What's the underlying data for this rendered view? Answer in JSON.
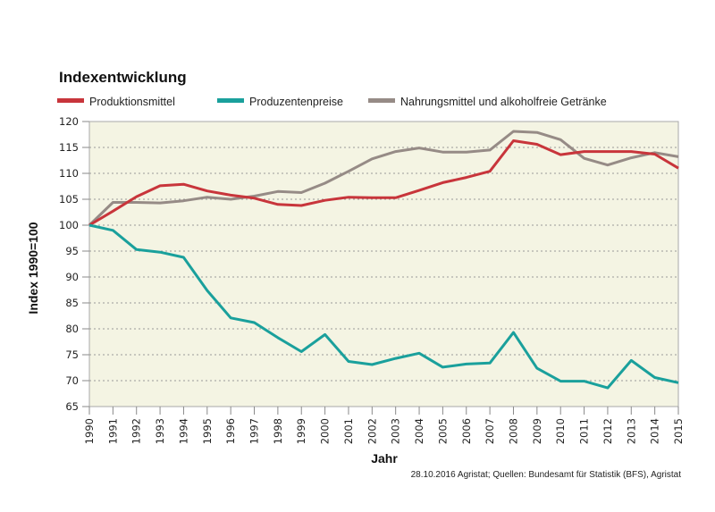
{
  "chart_data": {
    "type": "line",
    "title": "Indexentwicklung",
    "xlabel": "Jahr",
    "ylabel": "Index 1990=100",
    "source": "28.10.2016 Agristat; Quellen: Bundesamt für Statistik (BFS), Agristat",
    "ylim": [
      65,
      120
    ],
    "yticks": [
      65,
      70,
      75,
      80,
      85,
      90,
      95,
      100,
      105,
      110,
      115,
      120
    ],
    "grid": true,
    "legend_position": "top-left",
    "background_color": "#f4f4e3",
    "x": [
      1990,
      1991,
      1992,
      1993,
      1994,
      1995,
      1996,
      1997,
      1998,
      1999,
      2000,
      2001,
      2002,
      2003,
      2004,
      2005,
      2006,
      2007,
      2008,
      2009,
      2010,
      2011,
      2012,
      2013,
      2014,
      2015
    ],
    "series": [
      {
        "name": "Produktionsmittel",
        "color": "#c8353b",
        "values": [
          100,
          102.7,
          105.5,
          107.6,
          107.9,
          106.6,
          105.8,
          105.2,
          104.0,
          103.8,
          104.8,
          105.4,
          105.3,
          105.3,
          106.7,
          108.2,
          109.2,
          110.4,
          116.3,
          115.6,
          113.6,
          114.2,
          114.2,
          114.2,
          113.7,
          111.0
        ]
      },
      {
        "name": "Produzentenpreise",
        "color": "#1aa09c",
        "values": [
          100,
          99.0,
          95.3,
          94.8,
          93.8,
          87.4,
          82.1,
          81.2,
          78.3,
          75.6,
          78.9,
          73.7,
          73.1,
          74.3,
          75.3,
          72.6,
          73.2,
          73.4,
          79.3,
          72.4,
          69.9,
          69.9,
          68.6,
          73.9,
          70.6,
          69.6
        ]
      },
      {
        "name": "Nahrungsmittel und alkoholfreie Getränke",
        "color": "#968b86",
        "values": [
          100,
          104.4,
          104.4,
          104.3,
          104.7,
          105.4,
          105.0,
          105.6,
          106.5,
          106.3,
          108.1,
          110.4,
          112.8,
          114.2,
          114.9,
          114.1,
          114.1,
          114.5,
          118.1,
          117.9,
          116.5,
          112.9,
          111.6,
          113.0,
          114.0,
          113.2
        ]
      }
    ]
  }
}
